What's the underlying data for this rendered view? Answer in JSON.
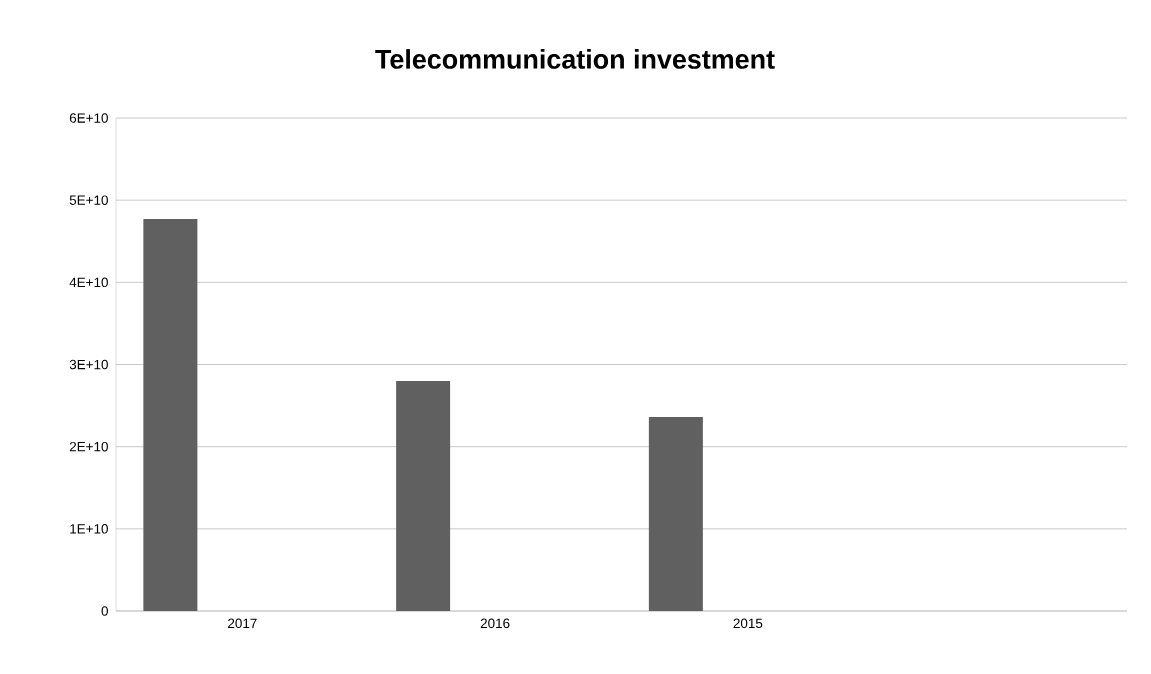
{
  "chart_data": {
    "type": "bar",
    "title": "Telecommunication investment",
    "categories": [
      "2017",
      "2016",
      "2015",
      null
    ],
    "values": [
      47700000000.0,
      28000000000.0,
      23600000000.0,
      null
    ],
    "color": "#606060",
    "ylim": [
      0,
      60000000000.0
    ],
    "yticks": [
      0,
      {
        "value": 10000000000.0,
        "label": "1E+10"
      },
      {
        "value": 20000000000.0,
        "label": "2E+10"
      },
      {
        "value": 30000000000.0,
        "label": "3E+10"
      },
      {
        "value": 40000000000.0,
        "label": "4E+10"
      },
      {
        "value": 50000000000.0,
        "label": "5E+10"
      },
      {
        "value": 60000000000.0,
        "label": "6E+10"
      }
    ],
    "grid": "y"
  }
}
